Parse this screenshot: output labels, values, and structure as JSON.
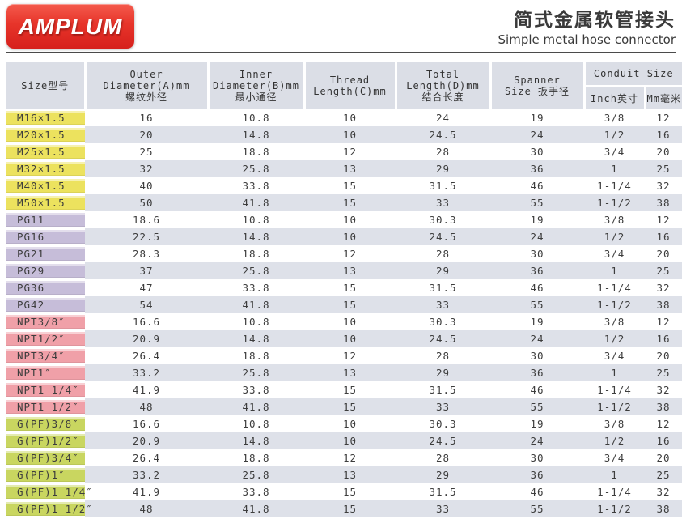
{
  "header": {
    "logo_text": "AMPLUM",
    "title_zh": "简式金属软管接头",
    "title_en": "Simple metal hose connector"
  },
  "colors": {
    "brand_red": "#d6201c",
    "header_bg": "#dbdee6",
    "stripe_bg": "#dee1e9"
  },
  "table": {
    "headers": {
      "size": "Size型号",
      "outer": [
        "Outer",
        "Diameter(A)mm",
        "螺纹外径"
      ],
      "inner": [
        "Inner",
        "Diameter(B)mm",
        "最小通径"
      ],
      "thread": [
        "Thread",
        "Length(C)mm"
      ],
      "total": [
        "Total",
        "Length(D)mm",
        "结合长度"
      ],
      "spanner": [
        "Spanner",
        "Size 扳手径"
      ],
      "conduit": "Conduit Size",
      "conduit_inch": "Inch英寸",
      "conduit_mm": "Mm毫米"
    },
    "group_colors": {
      "metric": "#ece25e",
      "pg": "#c6bdd9",
      "npt": "#f0a0a8",
      "gpf": "#c9d660"
    },
    "rows": [
      {
        "group": "metric",
        "size": "M16×1.5",
        "values": [
          "16",
          "10.8",
          "10",
          "24",
          "19",
          "3/8",
          "12"
        ]
      },
      {
        "group": "metric",
        "size": "M20×1.5",
        "values": [
          "20",
          "14.8",
          "10",
          "24.5",
          "24",
          "1/2",
          "16"
        ]
      },
      {
        "group": "metric",
        "size": "M25×1.5",
        "values": [
          "25",
          "18.8",
          "12",
          "28",
          "30",
          "3/4",
          "20"
        ]
      },
      {
        "group": "metric",
        "size": "M32×1.5",
        "values": [
          "32",
          "25.8",
          "13",
          "29",
          "36",
          "1",
          "25"
        ]
      },
      {
        "group": "metric",
        "size": "M40×1.5",
        "values": [
          "40",
          "33.8",
          "15",
          "31.5",
          "46",
          "1-1/4",
          "32"
        ]
      },
      {
        "group": "metric",
        "size": "M50×1.5",
        "values": [
          "50",
          "41.8",
          "15",
          "33",
          "55",
          "1-1/2",
          "38"
        ]
      },
      {
        "group": "pg",
        "size": "PG11",
        "values": [
          "18.6",
          "10.8",
          "10",
          "30.3",
          "19",
          "3/8",
          "12"
        ]
      },
      {
        "group": "pg",
        "size": "PG16",
        "values": [
          "22.5",
          "14.8",
          "10",
          "24.5",
          "24",
          "1/2",
          "16"
        ]
      },
      {
        "group": "pg",
        "size": "PG21",
        "values": [
          "28.3",
          "18.8",
          "12",
          "28",
          "30",
          "3/4",
          "20"
        ]
      },
      {
        "group": "pg",
        "size": "PG29",
        "values": [
          "37",
          "25.8",
          "13",
          "29",
          "36",
          "1",
          "25"
        ]
      },
      {
        "group": "pg",
        "size": "PG36",
        "values": [
          "47",
          "33.8",
          "15",
          "31.5",
          "46",
          "1-1/4",
          "32"
        ]
      },
      {
        "group": "pg",
        "size": "PG42",
        "values": [
          "54",
          "41.8",
          "15",
          "33",
          "55",
          "1-1/2",
          "38"
        ]
      },
      {
        "group": "npt",
        "size": "NPT3/8″",
        "values": [
          "16.6",
          "10.8",
          "10",
          "30.3",
          "19",
          "3/8",
          "12"
        ]
      },
      {
        "group": "npt",
        "size": "NPT1/2″",
        "values": [
          "20.9",
          "14.8",
          "10",
          "24.5",
          "24",
          "1/2",
          "16"
        ]
      },
      {
        "group": "npt",
        "size": "NPT3/4″",
        "values": [
          "26.4",
          "18.8",
          "12",
          "28",
          "30",
          "3/4",
          "20"
        ]
      },
      {
        "group": "npt",
        "size": "NPT1″",
        "values": [
          "33.2",
          "25.8",
          "13",
          "29",
          "36",
          "1",
          "25"
        ]
      },
      {
        "group": "npt",
        "size": "NPT1 1/4″",
        "values": [
          "41.9",
          "33.8",
          "15",
          "31.5",
          "46",
          "1-1/4",
          "32"
        ]
      },
      {
        "group": "npt",
        "size": "NPT1 1/2″",
        "values": [
          "48",
          "41.8",
          "15",
          "33",
          "55",
          "1-1/2",
          "38"
        ]
      },
      {
        "group": "gpf",
        "size": "G(PF)3/8″",
        "values": [
          "16.6",
          "10.8",
          "10",
          "30.3",
          "19",
          "3/8",
          "12"
        ]
      },
      {
        "group": "gpf",
        "size": "G(PF)1/2″",
        "values": [
          "20.9",
          "14.8",
          "10",
          "24.5",
          "24",
          "1/2",
          "16"
        ]
      },
      {
        "group": "gpf",
        "size": "G(PF)3/4″",
        "values": [
          "26.4",
          "18.8",
          "12",
          "28",
          "30",
          "3/4",
          "20"
        ]
      },
      {
        "group": "gpf",
        "size": "G(PF)1″",
        "values": [
          "33.2",
          "25.8",
          "13",
          "29",
          "36",
          "1",
          "25"
        ]
      },
      {
        "group": "gpf",
        "size": "G(PF)1 1/4″",
        "values": [
          "41.9",
          "33.8",
          "15",
          "31.5",
          "46",
          "1-1/4",
          "32"
        ]
      },
      {
        "group": "gpf",
        "size": "G(PF)1 1/2″",
        "values": [
          "48",
          "41.8",
          "15",
          "33",
          "55",
          "1-1/2",
          "38"
        ]
      }
    ]
  }
}
